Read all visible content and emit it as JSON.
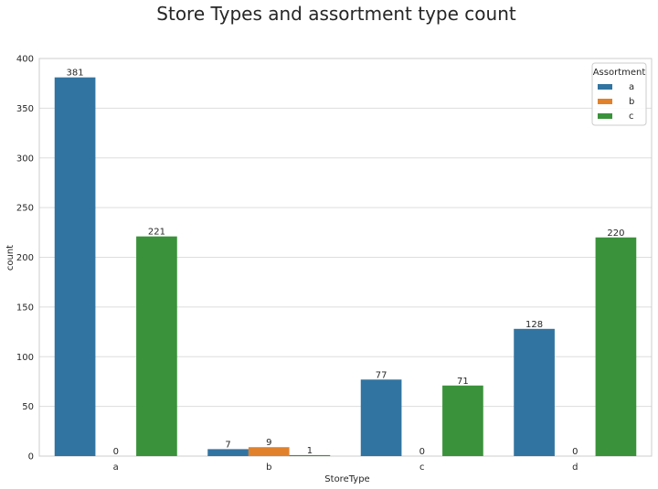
{
  "chart_data": {
    "type": "bar",
    "title": "Store Types and assortment type count",
    "xlabel": "StoreType",
    "ylabel": "count",
    "categories": [
      "a",
      "b",
      "c",
      "d"
    ],
    "ylim": [
      0,
      400
    ],
    "yticks": [
      0,
      50,
      100,
      150,
      200,
      250,
      300,
      350,
      400
    ],
    "grid": true,
    "legend": {
      "title": "Assortment",
      "placement": "top-right"
    },
    "series": [
      {
        "name": "a",
        "color": "#3274a1",
        "values": [
          381,
          7,
          77,
          128
        ]
      },
      {
        "name": "b",
        "color": "#e1812c",
        "values": [
          0,
          9,
          0,
          0
        ]
      },
      {
        "name": "c",
        "color": "#3a923a",
        "values": [
          221,
          1,
          71,
          220
        ]
      }
    ]
  }
}
